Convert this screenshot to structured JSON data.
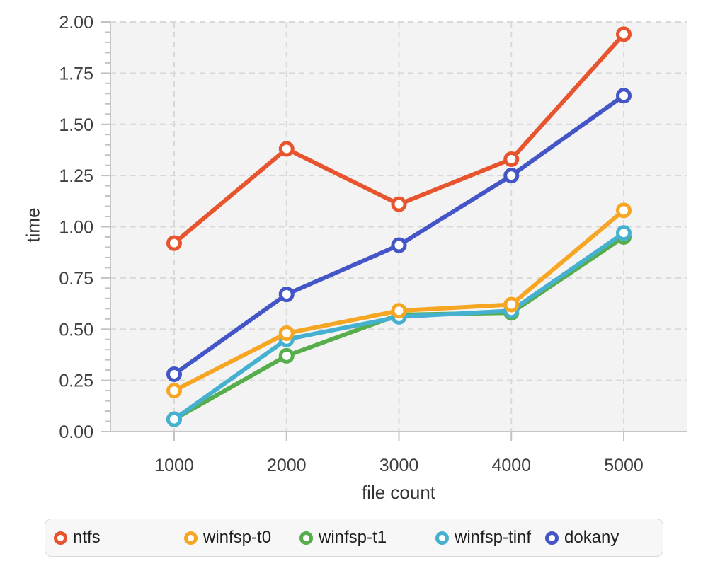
{
  "chart_data": {
    "type": "line",
    "title": "",
    "xlabel": "file count",
    "ylabel": "time",
    "x": [
      1000,
      2000,
      3000,
      4000,
      5000
    ],
    "x_tick_labels": [
      "1000",
      "2000",
      "3000",
      "4000",
      "5000"
    ],
    "ylim": [
      0,
      2.0
    ],
    "y_major_step": 0.25,
    "y_minor_step": 0.05,
    "y_tick_labels": [
      "0.00",
      "0.25",
      "0.50",
      "0.75",
      "1.00",
      "1.25",
      "1.50",
      "1.75",
      "2.00"
    ],
    "grid": "dashed-both-axes",
    "legend_position": "bottom",
    "series": [
      {
        "name": "ntfs",
        "color": "#e8542d",
        "values": [
          0.92,
          1.38,
          1.11,
          1.33,
          1.94
        ]
      },
      {
        "name": "winfsp-t0",
        "color": "#f6a623",
        "values": [
          0.2,
          0.48,
          0.59,
          0.62,
          1.08
        ]
      },
      {
        "name": "winfsp-t1",
        "color": "#56ad4b",
        "values": [
          0.06,
          0.37,
          0.57,
          0.58,
          0.95
        ]
      },
      {
        "name": "winfsp-tinf",
        "color": "#45b0cf",
        "values": [
          0.06,
          0.45,
          0.56,
          0.59,
          0.97
        ]
      },
      {
        "name": "dokany",
        "color": "#4355c7",
        "values": [
          0.28,
          0.67,
          0.91,
          1.25,
          1.64
        ]
      }
    ],
    "draw_order": [
      "winfsp-t1",
      "winfsp-tinf",
      "winfsp-t0",
      "dokany",
      "ntfs"
    ],
    "colors": {
      "plot_background": "#f3f3f4",
      "grid_line": "#d9d9d9",
      "axis_spine": "#c6c6c6",
      "tick_mark": "#c2c2c2",
      "tick_label": "#3f3f3f",
      "axis_title": "#333333"
    }
  }
}
